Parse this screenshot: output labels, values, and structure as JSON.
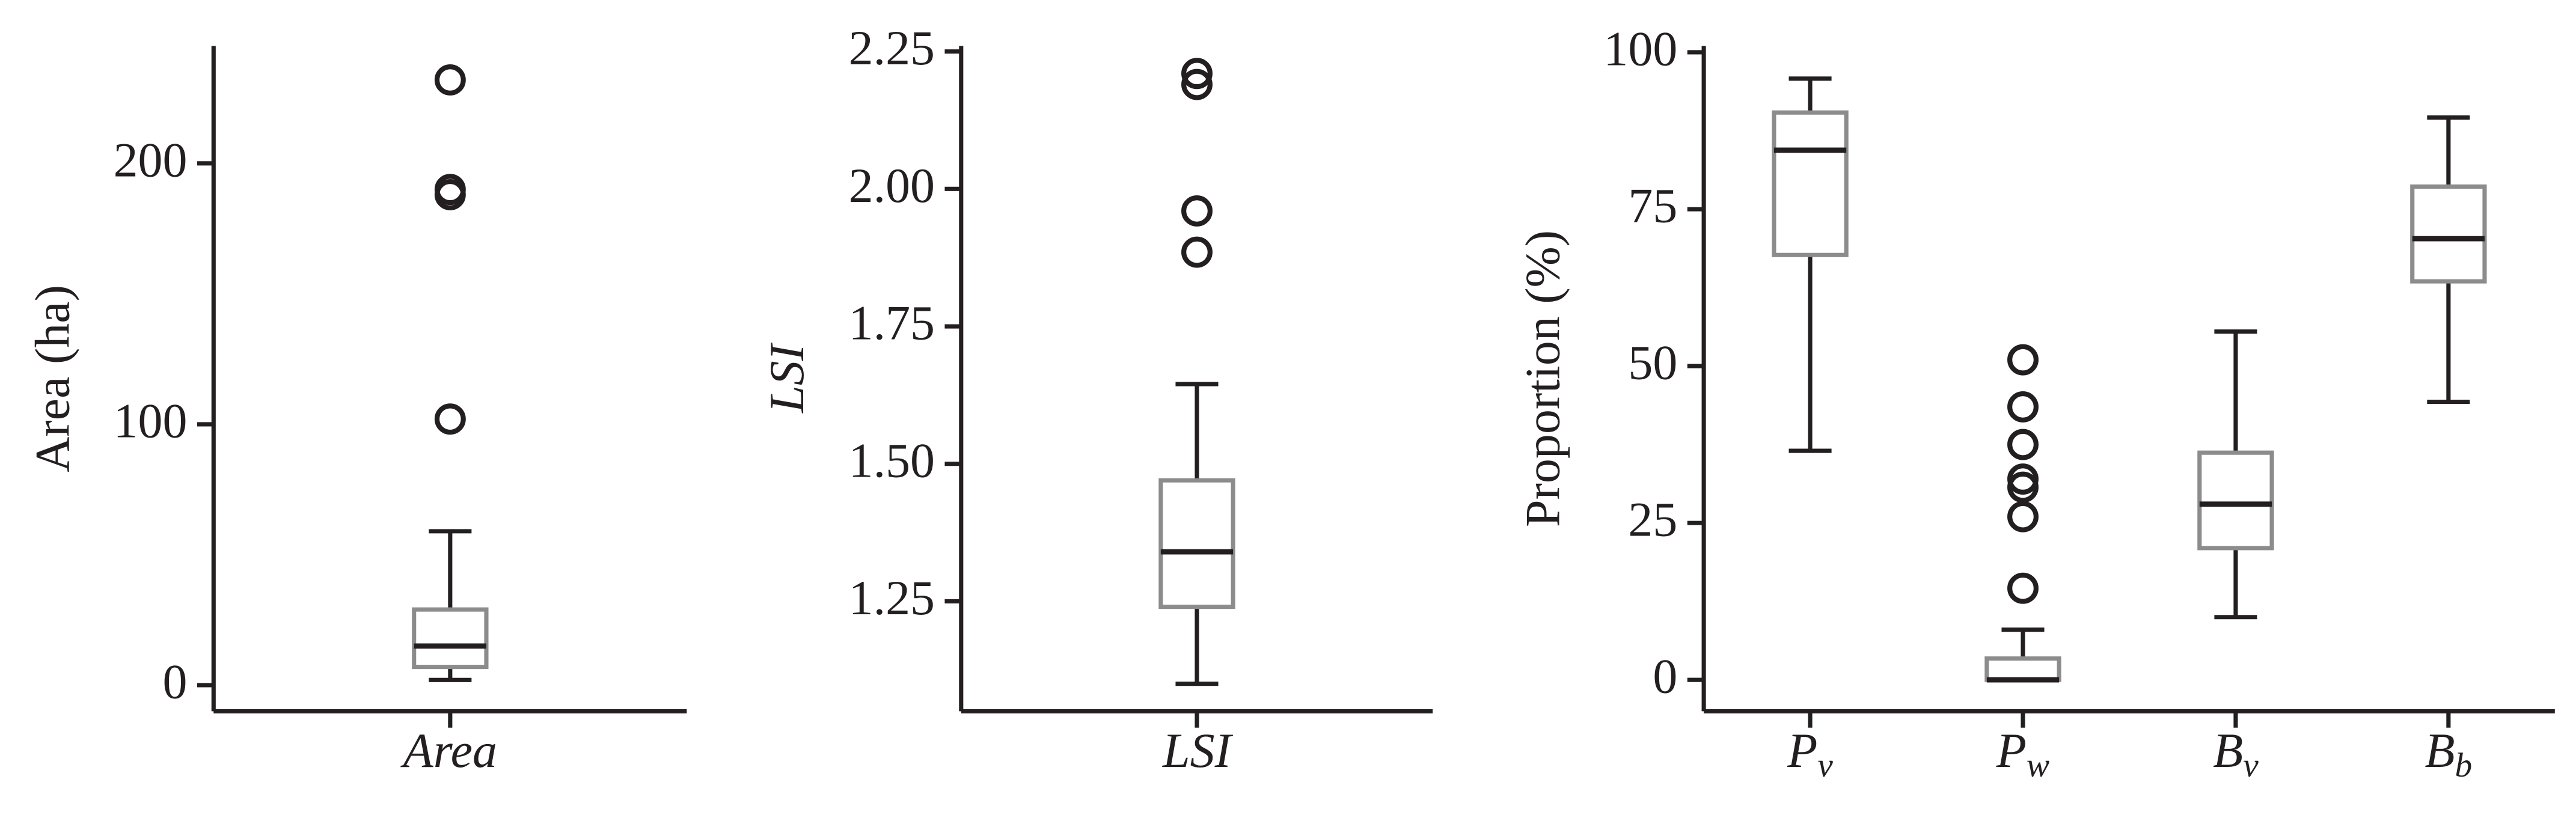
{
  "chart_data": [
    {
      "type": "box",
      "ylabel": "Area (ha)",
      "categories": [
        "Area"
      ],
      "category_style": "italic",
      "ylim": [
        -10,
        245
      ],
      "yticks": [
        0,
        100,
        200
      ],
      "box_color": "#8c8c8c",
      "line_color": "#231f20",
      "boxes": [
        {
          "whislo": 2,
          "q1": 7,
          "med": 15,
          "q3": 29,
          "whishi": 59,
          "fliers": [
            102,
            188,
            190,
            232
          ]
        }
      ]
    },
    {
      "type": "box",
      "ylabel": "LSI",
      "ylabel_style": "italic",
      "categories": [
        "LSI"
      ],
      "category_style": "italic",
      "ylim": [
        1.05,
        2.26
      ],
      "yticks": [
        1.25,
        {
          "value": 1.5,
          "label": "1.50"
        },
        1.75,
        {
          "value": 2,
          "label": "2.00"
        },
        2.25
      ],
      "box_color": "#8c8c8c",
      "line_color": "#231f20",
      "boxes": [
        {
          "whislo": 1.1,
          "q1": 1.24,
          "med": 1.34,
          "q3": 1.47,
          "whishi": 1.645,
          "fliers": [
            1.885,
            1.96,
            2.19,
            2.21
          ]
        }
      ]
    },
    {
      "type": "box",
      "ylabel": "Proportion (%)",
      "categories": [
        {
          "base": "P",
          "sub": "v"
        },
        {
          "base": "P",
          "sub": "w"
        },
        {
          "base": "B",
          "sub": "v"
        },
        {
          "base": "B",
          "sub": "b"
        }
      ],
      "category_style": "italic",
      "ylim": [
        -5,
        101
      ],
      "yticks": [
        0,
        25,
        50,
        75,
        100
      ],
      "box_color": "#8c8c8c",
      "line_color": "#231f20",
      "boxes": [
        {
          "whislo": 36.5,
          "q1": 67.7,
          "med": 84.4,
          "q3": 90.4,
          "whishi": 95.8,
          "fliers": []
        },
        {
          "whislo": 0,
          "q1": 0,
          "med": 0,
          "q3": 3.4,
          "whishi": 8,
          "fliers": [
            14.6,
            26,
            30.7,
            32,
            37.5,
            43.5,
            51
          ]
        },
        {
          "whislo": 10,
          "q1": 21,
          "med": 28,
          "q3": 36.2,
          "whishi": 55.5,
          "fliers": []
        },
        {
          "whislo": 44.3,
          "q1": 63.5,
          "med": 70.3,
          "q3": 78.6,
          "whishi": 89.6,
          "fliers": []
        }
      ]
    }
  ]
}
